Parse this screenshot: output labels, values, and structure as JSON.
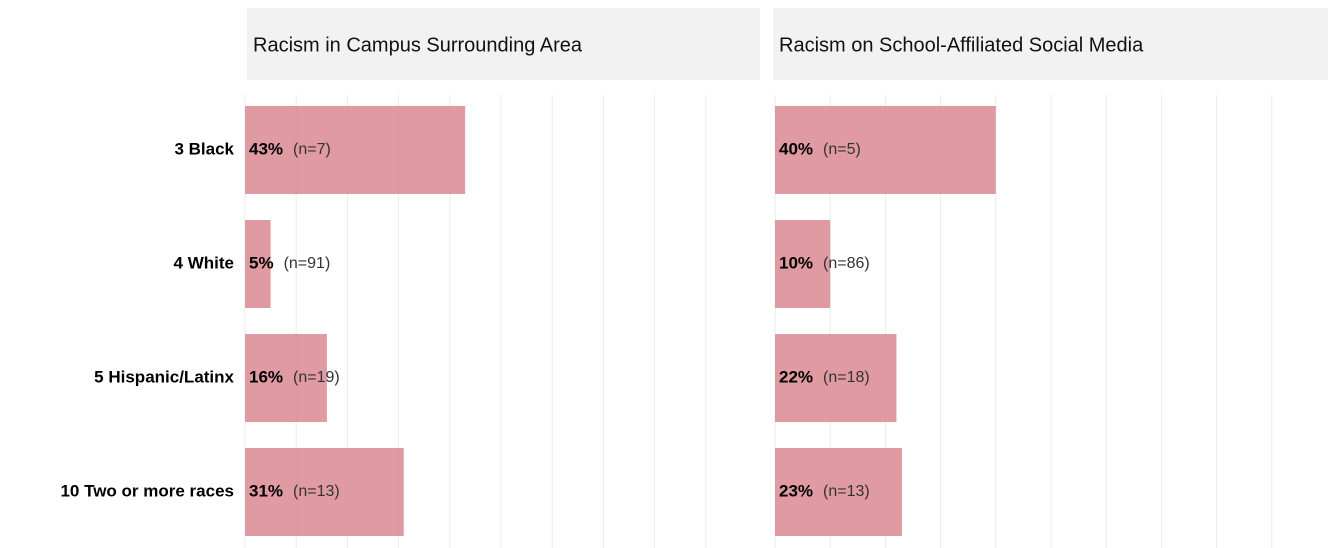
{
  "chart_data": {
    "type": "bar",
    "orientation": "horizontal",
    "categories": [
      "3 Black",
      "4 White",
      "5 Hispanic/Latinx",
      "10 Two or more races"
    ],
    "color": "#d98892",
    "grid": true,
    "xlim": [
      0,
      100
    ],
    "xticks": [
      0,
      10,
      20,
      30,
      40,
      50,
      60,
      70,
      80,
      90
    ],
    "panels": [
      {
        "title": "Racism in Campus Surrounding Area",
        "values": [
          43,
          5,
          16,
          31
        ],
        "value_labels": [
          "43%",
          "5%",
          "16%",
          "31%"
        ],
        "n_labels": [
          "(n=7)",
          "(n=91)",
          "(n=19)",
          "(n=13)"
        ]
      },
      {
        "title": "Racism on School-Affiliated Social Media",
        "values": [
          40,
          10,
          22,
          23
        ],
        "value_labels": [
          "40%",
          "10%",
          "22%",
          "23%"
        ],
        "n_labels": [
          "(n=5)",
          "(n=86)",
          "(n=18)",
          "(n=13)"
        ]
      }
    ]
  }
}
